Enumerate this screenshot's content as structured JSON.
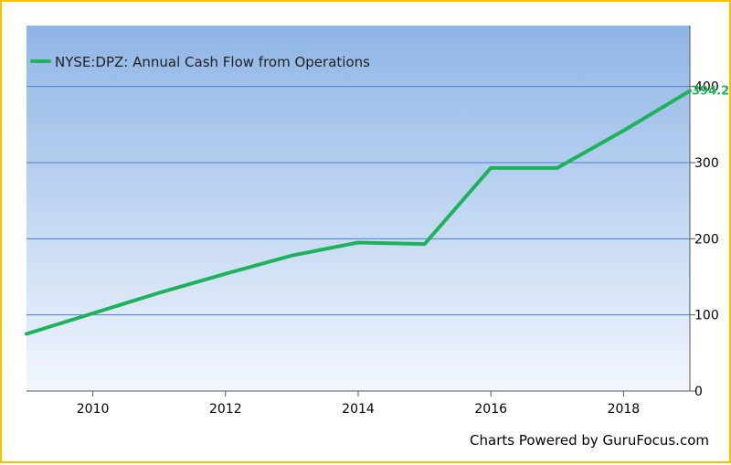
{
  "chart_data": {
    "type": "line",
    "series": [
      {
        "name": "NYSE:DPZ: Annual Cash Flow from Operations",
        "color": "#1db35a",
        "x": [
          2009,
          2010,
          2011,
          2012,
          2013,
          2014,
          2015,
          2016,
          2017,
          2018,
          2019
        ],
        "values": [
          75,
          102,
          129,
          154,
          178,
          195,
          193,
          293,
          293,
          342,
          394.2
        ]
      }
    ],
    "xlim": [
      2009,
      2019
    ],
    "ylim": [
      0,
      480
    ],
    "x_ticks": [
      2010,
      2012,
      2014,
      2016,
      2018
    ],
    "y_ticks": [
      0,
      100,
      200,
      300,
      400
    ],
    "grid": "horizontal",
    "legend": "top-left",
    "last_value_label": "394.2",
    "background_gradient": [
      "#8fb5e6",
      "#f2f7fd"
    ],
    "frame_color": "#f5c400"
  },
  "footer": {
    "credit": "Charts Powered by GuruFocus.com"
  }
}
